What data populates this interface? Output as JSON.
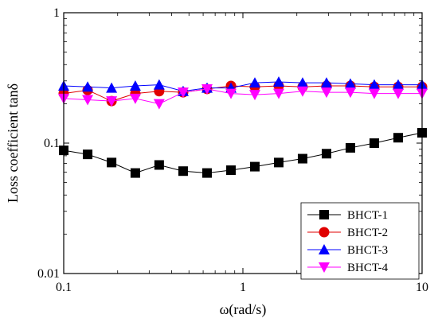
{
  "chart_data": {
    "type": "line",
    "title": "",
    "xlabel": "ω(rad/s)",
    "ylabel": "Loss coefficient tanδ",
    "xscale": "log",
    "yscale": "log",
    "xlim": [
      0.1,
      10
    ],
    "ylim": [
      0.01,
      1
    ],
    "x_ticks": [
      "0.1",
      "1",
      "10"
    ],
    "y_ticks": [
      "0.01",
      "0.1",
      "1"
    ],
    "x_tick_values": [
      0.1,
      1,
      10
    ],
    "y_tick_values": [
      0.01,
      0.1,
      1
    ],
    "grid": false,
    "legend_position": "bottom-right",
    "x": [
      0.1,
      0.136,
      0.185,
      0.251,
      0.341,
      0.464,
      0.631,
      0.858,
      1.166,
      1.585,
      2.154,
      2.929,
      3.981,
      5.412,
      7.356,
      10
    ],
    "series": [
      {
        "name": "BHCT-1",
        "color": "#000000",
        "marker": "square",
        "values": [
          0.088,
          0.082,
          0.071,
          0.059,
          0.068,
          0.061,
          0.059,
          0.062,
          0.066,
          0.071,
          0.076,
          0.083,
          0.092,
          0.1,
          0.11,
          0.12
        ]
      },
      {
        "name": "BHCT-2",
        "color": "#e00000",
        "marker": "circle",
        "values": [
          0.24,
          0.255,
          0.21,
          0.24,
          0.25,
          0.245,
          0.26,
          0.275,
          0.27,
          0.275,
          0.27,
          0.275,
          0.275,
          0.27,
          0.27,
          0.27
        ]
      },
      {
        "name": "BHCT-3",
        "color": "#0000ff",
        "marker": "triangle-up",
        "values": [
          0.275,
          0.27,
          0.265,
          0.275,
          0.28,
          0.25,
          0.265,
          0.265,
          0.29,
          0.295,
          0.29,
          0.29,
          0.285,
          0.28,
          0.28,
          0.28
        ]
      },
      {
        "name": "BHCT-4",
        "color": "#ff00ff",
        "marker": "triangle-down",
        "values": [
          0.22,
          0.215,
          0.21,
          0.22,
          0.2,
          0.245,
          0.26,
          0.24,
          0.235,
          0.24,
          0.25,
          0.245,
          0.245,
          0.24,
          0.24,
          0.24
        ]
      }
    ]
  }
}
